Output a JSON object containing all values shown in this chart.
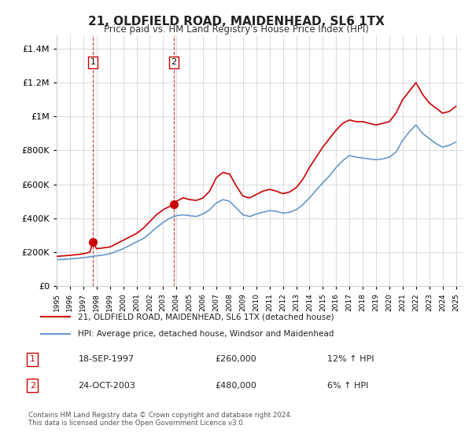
{
  "title": "21, OLDFIELD ROAD, MAIDENHEAD, SL6 1TX",
  "subtitle": "Price paid vs. HM Land Registry's House Price Index (HPI)",
  "ylabel_ticks": [
    "£0",
    "£200K",
    "£400K",
    "£600K",
    "£800K",
    "£1M",
    "£1.2M",
    "£1.4M"
  ],
  "ytick_values": [
    0,
    200000,
    400000,
    600000,
    800000,
    1000000,
    1200000,
    1400000
  ],
  "ylim": [
    0,
    1480000
  ],
  "xlim_start": 1995.0,
  "xlim_end": 2025.5,
  "sale_dates": [
    1997.72,
    2003.81
  ],
  "sale_prices": [
    260000,
    480000
  ],
  "sale_labels": [
    "1",
    "2"
  ],
  "legend_property": "21, OLDFIELD ROAD, MAIDENHEAD, SL6 1TX (detached house)",
  "legend_hpi": "HPI: Average price, detached house, Windsor and Maidenhead",
  "annotation1_label": "1",
  "annotation1_date": "18-SEP-1997",
  "annotation1_price": "£260,000",
  "annotation1_hpi": "12% ↑ HPI",
  "annotation2_label": "2",
  "annotation2_date": "24-OCT-2003",
  "annotation2_price": "£480,000",
  "annotation2_hpi": "6% ↑ HPI",
  "footer": "Contains HM Land Registry data © Crown copyright and database right 2024.\nThis data is licensed under the Open Government Licence v3.0.",
  "property_color": "#cc0000",
  "hpi_color": "#6699cc",
  "vline_color": "#cc0000",
  "sale_marker_color": "#cc0000",
  "background_color": "#ffffff",
  "grid_color": "#cccccc",
  "property_line_data_x": [
    1995.0,
    1995.5,
    1996.0,
    1996.5,
    1997.0,
    1997.5,
    1997.72,
    1998.0,
    1998.5,
    1999.0,
    1999.5,
    2000.0,
    2000.5,
    2001.0,
    2001.5,
    2002.0,
    2002.5,
    2003.0,
    2003.5,
    2003.81,
    2004.0,
    2004.5,
    2005.0,
    2005.5,
    2006.0,
    2006.5,
    2007.0,
    2007.5,
    2008.0,
    2008.5,
    2009.0,
    2009.5,
    2010.0,
    2010.5,
    2011.0,
    2011.5,
    2012.0,
    2012.5,
    2013.0,
    2013.5,
    2014.0,
    2014.5,
    2015.0,
    2015.5,
    2016.0,
    2016.5,
    2017.0,
    2017.5,
    2018.0,
    2018.5,
    2019.0,
    2019.5,
    2020.0,
    2020.5,
    2021.0,
    2021.5,
    2022.0,
    2022.5,
    2023.0,
    2023.5,
    2024.0,
    2024.5,
    2025.0
  ],
  "property_line_data_y": [
    175000,
    178000,
    181000,
    185000,
    190000,
    200000,
    260000,
    220000,
    225000,
    230000,
    250000,
    270000,
    290000,
    310000,
    340000,
    380000,
    420000,
    450000,
    470000,
    480000,
    500000,
    520000,
    510000,
    505000,
    520000,
    560000,
    640000,
    670000,
    660000,
    590000,
    530000,
    520000,
    540000,
    560000,
    570000,
    560000,
    545000,
    555000,
    580000,
    630000,
    700000,
    760000,
    820000,
    870000,
    920000,
    960000,
    980000,
    970000,
    970000,
    960000,
    950000,
    960000,
    970000,
    1020000,
    1100000,
    1150000,
    1200000,
    1130000,
    1080000,
    1050000,
    1020000,
    1030000,
    1060000
  ],
  "hpi_line_data_x": [
    1995.0,
    1995.5,
    1996.0,
    1996.5,
    1997.0,
    1997.5,
    1998.0,
    1998.5,
    1999.0,
    1999.5,
    2000.0,
    2000.5,
    2001.0,
    2001.5,
    2002.0,
    2002.5,
    2003.0,
    2003.5,
    2004.0,
    2004.5,
    2005.0,
    2005.5,
    2006.0,
    2006.5,
    2007.0,
    2007.5,
    2008.0,
    2008.5,
    2009.0,
    2009.5,
    2010.0,
    2010.5,
    2011.0,
    2011.5,
    2012.0,
    2012.5,
    2013.0,
    2013.5,
    2014.0,
    2014.5,
    2015.0,
    2015.5,
    2016.0,
    2016.5,
    2017.0,
    2017.5,
    2018.0,
    2018.5,
    2019.0,
    2019.5,
    2020.0,
    2020.5,
    2021.0,
    2021.5,
    2022.0,
    2022.5,
    2023.0,
    2023.5,
    2024.0,
    2024.5,
    2025.0
  ],
  "hpi_line_data_y": [
    155000,
    157000,
    160000,
    163000,
    167000,
    172000,
    178000,
    183000,
    190000,
    205000,
    220000,
    240000,
    260000,
    280000,
    310000,
    345000,
    375000,
    400000,
    415000,
    420000,
    415000,
    410000,
    425000,
    450000,
    490000,
    510000,
    500000,
    460000,
    420000,
    410000,
    425000,
    435000,
    445000,
    440000,
    430000,
    435000,
    450000,
    480000,
    520000,
    565000,
    610000,
    650000,
    700000,
    740000,
    770000,
    760000,
    755000,
    750000,
    745000,
    750000,
    760000,
    790000,
    860000,
    910000,
    950000,
    900000,
    870000,
    840000,
    820000,
    830000,
    850000
  ]
}
